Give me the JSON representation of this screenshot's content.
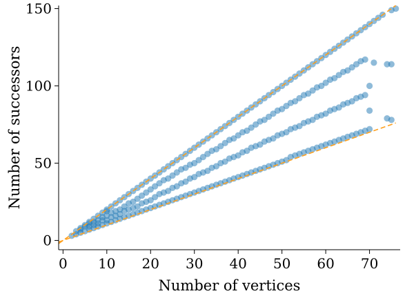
{
  "chart_data": {
    "type": "scatter",
    "title": "",
    "xlabel": "Number of vertices",
    "ylabel": "Number of successors",
    "xlim": [
      -1,
      77
    ],
    "ylim": [
      -6,
      152
    ],
    "xticks": [
      0,
      10,
      20,
      30,
      40,
      50,
      60,
      70
    ],
    "yticks": [
      0,
      50,
      100,
      150
    ],
    "grid": false,
    "colors": {
      "points": "#1f77b4",
      "bound_lines": "#ff9f1c"
    },
    "reference_lines": [
      {
        "style": "dashed",
        "slope": 2.0,
        "intercept": 0,
        "x_range": [
          -1,
          76
        ]
      },
      {
        "style": "dashed",
        "slope": 1.0,
        "intercept": 0,
        "x_range": [
          -1,
          76
        ]
      }
    ],
    "points": [
      [
        2,
        3
      ],
      [
        3,
        4
      ],
      [
        3,
        6
      ],
      [
        4,
        5
      ],
      [
        4,
        7
      ],
      [
        4,
        8
      ],
      [
        5,
        6
      ],
      [
        5,
        9
      ],
      [
        5,
        10
      ],
      [
        6,
        7
      ],
      [
        6,
        9
      ],
      [
        6,
        11
      ],
      [
        6,
        12
      ],
      [
        7,
        8
      ],
      [
        7,
        10
      ],
      [
        7,
        12
      ],
      [
        7,
        14
      ],
      [
        8,
        9
      ],
      [
        8,
        11
      ],
      [
        8,
        13
      ],
      [
        8,
        16
      ],
      [
        9,
        10
      ],
      [
        9,
        13
      ],
      [
        9,
        15
      ],
      [
        9,
        18
      ],
      [
        10,
        11
      ],
      [
        10,
        13
      ],
      [
        10,
        16
      ],
      [
        10,
        19
      ],
      [
        10,
        20
      ],
      [
        11,
        12
      ],
      [
        11,
        15
      ],
      [
        11,
        18
      ],
      [
        11,
        22
      ],
      [
        12,
        13
      ],
      [
        12,
        16
      ],
      [
        12,
        19
      ],
      [
        12,
        24
      ],
      [
        13,
        14
      ],
      [
        13,
        17
      ],
      [
        13,
        20
      ],
      [
        13,
        26
      ],
      [
        14,
        15
      ],
      [
        14,
        19
      ],
      [
        14,
        22
      ],
      [
        14,
        28
      ],
      [
        15,
        16
      ],
      [
        15,
        20
      ],
      [
        15,
        24
      ],
      [
        15,
        30
      ],
      [
        16,
        17
      ],
      [
        16,
        21
      ],
      [
        16,
        25
      ],
      [
        16,
        32
      ],
      [
        17,
        18
      ],
      [
        17,
        22
      ],
      [
        17,
        27
      ],
      [
        17,
        34
      ],
      [
        18,
        19
      ],
      [
        18,
        24
      ],
      [
        18,
        29
      ],
      [
        18,
        36
      ],
      [
        19,
        20
      ],
      [
        19,
        25
      ],
      [
        19,
        31
      ],
      [
        19,
        38
      ],
      [
        20,
        21
      ],
      [
        20,
        26
      ],
      [
        20,
        33
      ],
      [
        20,
        40
      ],
      [
        21,
        22
      ],
      [
        21,
        28
      ],
      [
        21,
        35
      ],
      [
        21,
        42
      ],
      [
        22,
        23
      ],
      [
        22,
        30
      ],
      [
        22,
        37
      ],
      [
        22,
        44
      ],
      [
        23,
        24
      ],
      [
        23,
        31
      ],
      [
        23,
        39
      ],
      [
        23,
        46
      ],
      [
        24,
        25
      ],
      [
        24,
        32
      ],
      [
        24,
        40
      ],
      [
        24,
        48
      ],
      [
        25,
        26
      ],
      [
        25,
        34
      ],
      [
        25,
        42
      ],
      [
        25,
        50
      ],
      [
        26,
        27
      ],
      [
        26,
        35
      ],
      [
        26,
        44
      ],
      [
        26,
        52
      ],
      [
        27,
        28
      ],
      [
        27,
        37
      ],
      [
        27,
        46
      ],
      [
        27,
        54
      ],
      [
        28,
        29
      ],
      [
        28,
        38
      ],
      [
        28,
        47
      ],
      [
        28,
        56
      ],
      [
        29,
        30
      ],
      [
        29,
        40
      ],
      [
        29,
        49
      ],
      [
        29,
        58
      ],
      [
        30,
        31
      ],
      [
        30,
        41
      ],
      [
        30,
        50
      ],
      [
        30,
        60
      ],
      [
        31,
        32
      ],
      [
        31,
        43
      ],
      [
        31,
        52
      ],
      [
        31,
        62
      ],
      [
        32,
        33
      ],
      [
        32,
        44
      ],
      [
        32,
        54
      ],
      [
        32,
        64
      ],
      [
        33,
        34
      ],
      [
        33,
        45
      ],
      [
        33,
        56
      ],
      [
        33,
        66
      ],
      [
        34,
        35
      ],
      [
        34,
        47
      ],
      [
        34,
        58
      ],
      [
        34,
        68
      ],
      [
        35,
        36
      ],
      [
        35,
        48
      ],
      [
        35,
        59
      ],
      [
        35,
        70
      ],
      [
        36,
        37
      ],
      [
        36,
        50
      ],
      [
        36,
        61
      ],
      [
        36,
        72
      ],
      [
        37,
        38
      ],
      [
        37,
        51
      ],
      [
        37,
        63
      ],
      [
        37,
        74
      ],
      [
        38,
        39
      ],
      [
        38,
        53
      ],
      [
        38,
        65
      ],
      [
        38,
        76
      ],
      [
        39,
        40
      ],
      [
        39,
        54
      ],
      [
        39,
        66
      ],
      [
        39,
        78
      ],
      [
        40,
        41
      ],
      [
        40,
        55
      ],
      [
        40,
        68
      ],
      [
        40,
        80
      ],
      [
        41,
        42
      ],
      [
        41,
        57
      ],
      [
        41,
        70
      ],
      [
        41,
        82
      ],
      [
        42,
        43
      ],
      [
        42,
        58
      ],
      [
        42,
        71
      ],
      [
        42,
        84
      ],
      [
        43,
        44
      ],
      [
        43,
        60
      ],
      [
        43,
        73
      ],
      [
        43,
        86
      ],
      [
        44,
        45
      ],
      [
        44,
        61
      ],
      [
        44,
        75
      ],
      [
        44,
        88
      ],
      [
        45,
        46
      ],
      [
        45,
        62
      ],
      [
        45,
        77
      ],
      [
        45,
        90
      ],
      [
        46,
        47
      ],
      [
        46,
        64
      ],
      [
        46,
        78
      ],
      [
        46,
        92
      ],
      [
        47,
        48
      ],
      [
        47,
        65
      ],
      [
        47,
        80
      ],
      [
        47,
        94
      ],
      [
        48,
        49
      ],
      [
        48,
        66
      ],
      [
        48,
        82
      ],
      [
        48,
        96
      ],
      [
        49,
        50
      ],
      [
        49,
        68
      ],
      [
        49,
        84
      ],
      [
        49,
        98
      ],
      [
        50,
        51
      ],
      [
        50,
        69
      ],
      [
        50,
        85
      ],
      [
        50,
        100
      ],
      [
        51,
        52
      ],
      [
        51,
        70
      ],
      [
        51,
        87
      ],
      [
        51,
        102
      ],
      [
        52,
        54
      ],
      [
        52,
        72
      ],
      [
        52,
        89
      ],
      [
        52,
        104
      ],
      [
        53,
        55
      ],
      [
        53,
        73
      ],
      [
        53,
        90
      ],
      [
        53,
        106
      ],
      [
        54,
        56
      ],
      [
        54,
        74
      ],
      [
        54,
        92
      ],
      [
        54,
        108
      ],
      [
        55,
        57
      ],
      [
        55,
        76
      ],
      [
        55,
        94
      ],
      [
        55,
        110
      ],
      [
        56,
        58
      ],
      [
        56,
        77
      ],
      [
        56,
        95
      ],
      [
        56,
        112
      ],
      [
        57,
        59
      ],
      [
        57,
        78
      ],
      [
        57,
        97
      ],
      [
        57,
        114
      ],
      [
        58,
        60
      ],
      [
        58,
        80
      ],
      [
        58,
        99
      ],
      [
        58,
        116
      ],
      [
        59,
        61
      ],
      [
        59,
        81
      ],
      [
        59,
        100
      ],
      [
        59,
        118
      ],
      [
        60,
        62
      ],
      [
        60,
        82
      ],
      [
        60,
        102
      ],
      [
        60,
        120
      ],
      [
        61,
        63
      ],
      [
        61,
        84
      ],
      [
        61,
        104
      ],
      [
        61,
        122
      ],
      [
        62,
        64
      ],
      [
        62,
        85
      ],
      [
        62,
        105
      ],
      [
        62,
        124
      ],
      [
        63,
        65
      ],
      [
        63,
        86
      ],
      [
        63,
        107
      ],
      [
        63,
        126
      ],
      [
        64,
        66
      ],
      [
        64,
        88
      ],
      [
        64,
        109
      ],
      [
        64,
        128
      ],
      [
        65,
        67
      ],
      [
        65,
        89
      ],
      [
        65,
        110
      ],
      [
        65,
        130
      ],
      [
        66,
        68
      ],
      [
        66,
        90
      ],
      [
        66,
        112
      ],
      [
        66,
        132
      ],
      [
        67,
        69
      ],
      [
        67,
        92
      ],
      [
        67,
        114
      ],
      [
        67,
        134
      ],
      [
        68,
        70
      ],
      [
        68,
        93
      ],
      [
        68,
        116
      ],
      [
        68,
        136
      ],
      [
        69,
        71
      ],
      [
        69,
        94
      ],
      [
        69,
        117
      ],
      [
        69,
        138
      ],
      [
        70,
        72
      ],
      [
        70,
        84
      ],
      [
        70,
        100
      ],
      [
        70,
        140
      ],
      [
        71,
        142
      ],
      [
        71,
        115
      ],
      [
        72,
        144
      ],
      [
        73,
        146
      ],
      [
        74,
        79
      ],
      [
        74,
        114
      ],
      [
        75,
        114
      ],
      [
        75,
        78
      ],
      [
        75,
        149
      ],
      [
        76,
        150
      ]
    ]
  }
}
